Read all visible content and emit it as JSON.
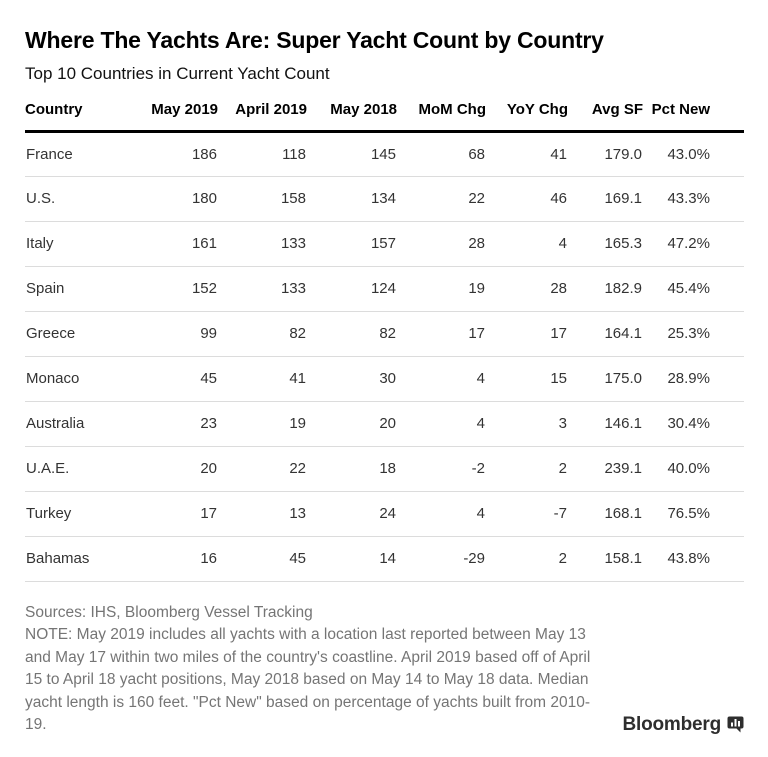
{
  "header": {
    "title": "Where The Yachts Are: Super Yacht Count by Country",
    "subtitle": "Top 10 Countries in Current Yacht Count"
  },
  "table": {
    "columns": [
      "Country",
      "May 2019",
      "April 2019",
      "May 2018",
      "MoM Chg",
      "YoY Chg",
      "Avg SF",
      "Pct New"
    ],
    "rows": [
      [
        "France",
        "186",
        "118",
        "145",
        "68",
        "41",
        "179.0",
        "43.0%"
      ],
      [
        "U.S.",
        "180",
        "158",
        "134",
        "22",
        "46",
        "169.1",
        "43.3%"
      ],
      [
        "Italy",
        "161",
        "133",
        "157",
        "28",
        "4",
        "165.3",
        "47.2%"
      ],
      [
        "Spain",
        "152",
        "133",
        "124",
        "19",
        "28",
        "182.9",
        "45.4%"
      ],
      [
        "Greece",
        "99",
        "82",
        "82",
        "17",
        "17",
        "164.1",
        "25.3%"
      ],
      [
        "Monaco",
        "45",
        "41",
        "30",
        "4",
        "15",
        "175.0",
        "28.9%"
      ],
      [
        "Australia",
        "23",
        "19",
        "20",
        "4",
        "3",
        "146.1",
        "30.4%"
      ],
      [
        "U.A.E.",
        "20",
        "22",
        "18",
        "-2",
        "2",
        "239.1",
        "40.0%"
      ],
      [
        "Turkey",
        "17",
        "13",
        "24",
        "4",
        "-7",
        "168.1",
        "76.5%"
      ],
      [
        "Bahamas",
        "16",
        "45",
        "14",
        "-29",
        "2",
        "158.1",
        "43.8%"
      ]
    ]
  },
  "footer": {
    "sources": "Sources: IHS, Bloomberg Vessel Tracking",
    "note": "NOTE: May 2019 includes all yachts with a location last reported between May 13\nand May 17 within two miles of the country's coastline. April 2019 based off of April\n15 to April 18 yacht positions, May 2018 based on May 14 to May 18 data. Median\nyacht length is 160 feet. \"Pct New\" based on percentage of yachts built from 2010-\n19.",
    "brand": "Bloomberg"
  },
  "colors": {
    "title_text": "#000000",
    "body_text": "#333333",
    "footnote_text": "#757575",
    "header_rule": "#000000",
    "row_divider": "#dcdcdc",
    "brand_color": "#2e2e2e",
    "background": "#ffffff"
  },
  "chart_data": {
    "type": "table",
    "title": "Where The Yachts Are: Super Yacht Count by Country",
    "subtitle": "Top 10 Countries in Current Yacht Count",
    "columns": [
      "Country",
      "May 2019",
      "April 2019",
      "May 2018",
      "MoM Chg",
      "YoY Chg",
      "Avg SF",
      "Pct New"
    ],
    "rows": [
      [
        "France",
        186,
        118,
        145,
        68,
        41,
        179.0,
        "43.0%"
      ],
      [
        "U.S.",
        180,
        158,
        134,
        22,
        46,
        169.1,
        "43.3%"
      ],
      [
        "Italy",
        161,
        133,
        157,
        28,
        4,
        165.3,
        "47.2%"
      ],
      [
        "Spain",
        152,
        133,
        124,
        19,
        28,
        182.9,
        "45.4%"
      ],
      [
        "Greece",
        99,
        82,
        82,
        17,
        17,
        164.1,
        "25.3%"
      ],
      [
        "Monaco",
        45,
        41,
        30,
        4,
        15,
        175.0,
        "28.9%"
      ],
      [
        "Australia",
        23,
        19,
        20,
        4,
        3,
        146.1,
        "30.4%"
      ],
      [
        "U.A.E.",
        20,
        22,
        18,
        -2,
        2,
        239.1,
        "40.0%"
      ],
      [
        "Turkey",
        17,
        13,
        24,
        4,
        -7,
        168.1,
        "76.5%"
      ],
      [
        "Bahamas",
        16,
        45,
        14,
        -29,
        2,
        158.1,
        "43.8%"
      ]
    ],
    "sources": "Sources: IHS, Bloomberg Vessel Tracking"
  }
}
